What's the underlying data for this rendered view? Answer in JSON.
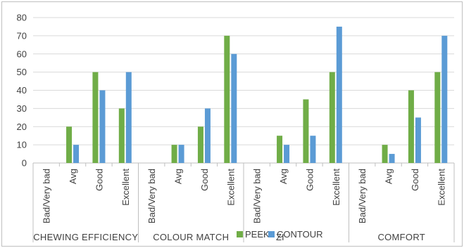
{
  "chart_data": {
    "type": "bar",
    "title": "",
    "xlabel": "",
    "ylabel": "",
    "ylim": [
      0,
      80
    ],
    "yticks": [
      0,
      10,
      20,
      30,
      40,
      50,
      60,
      70,
      80
    ],
    "grid": true,
    "legend_position": "bottom",
    "groups": [
      {
        "name": "CHEWING EFFICIENCY",
        "categories": [
          "Bad/Very bad",
          "Avg",
          "Good",
          "Excellent"
        ]
      },
      {
        "name": "COLOUR MATCH",
        "categories": [
          "Bad/Very bad",
          "Avg",
          "Good",
          "Excellent"
        ]
      },
      {
        "name": "ZIRCONIA",
        "categories": [
          "Bad/Very bad",
          "Avg",
          "Good",
          "Excellent"
        ]
      },
      {
        "name": "COMFORT",
        "categories": [
          "Bad/Very bad",
          "Avg",
          "Good",
          "Excellent"
        ]
      }
    ],
    "series": [
      {
        "name": "PEEK",
        "color": "#70ad47",
        "values": [
          0,
          20,
          50,
          30,
          0,
          10,
          20,
          70,
          0,
          15,
          35,
          50,
          0,
          10,
          40,
          50
        ]
      },
      {
        "name": "CONTOUR",
        "color": "#5b9bd5",
        "values": [
          0,
          10,
          40,
          50,
          0,
          10,
          30,
          60,
          0,
          10,
          15,
          75,
          0,
          5,
          25,
          70
        ]
      }
    ]
  },
  "legend": {
    "overlap_text": "ZI"
  },
  "colors": {
    "grid": "#d9d9d9",
    "axis": "#bfbfbf",
    "text": "#404040"
  }
}
